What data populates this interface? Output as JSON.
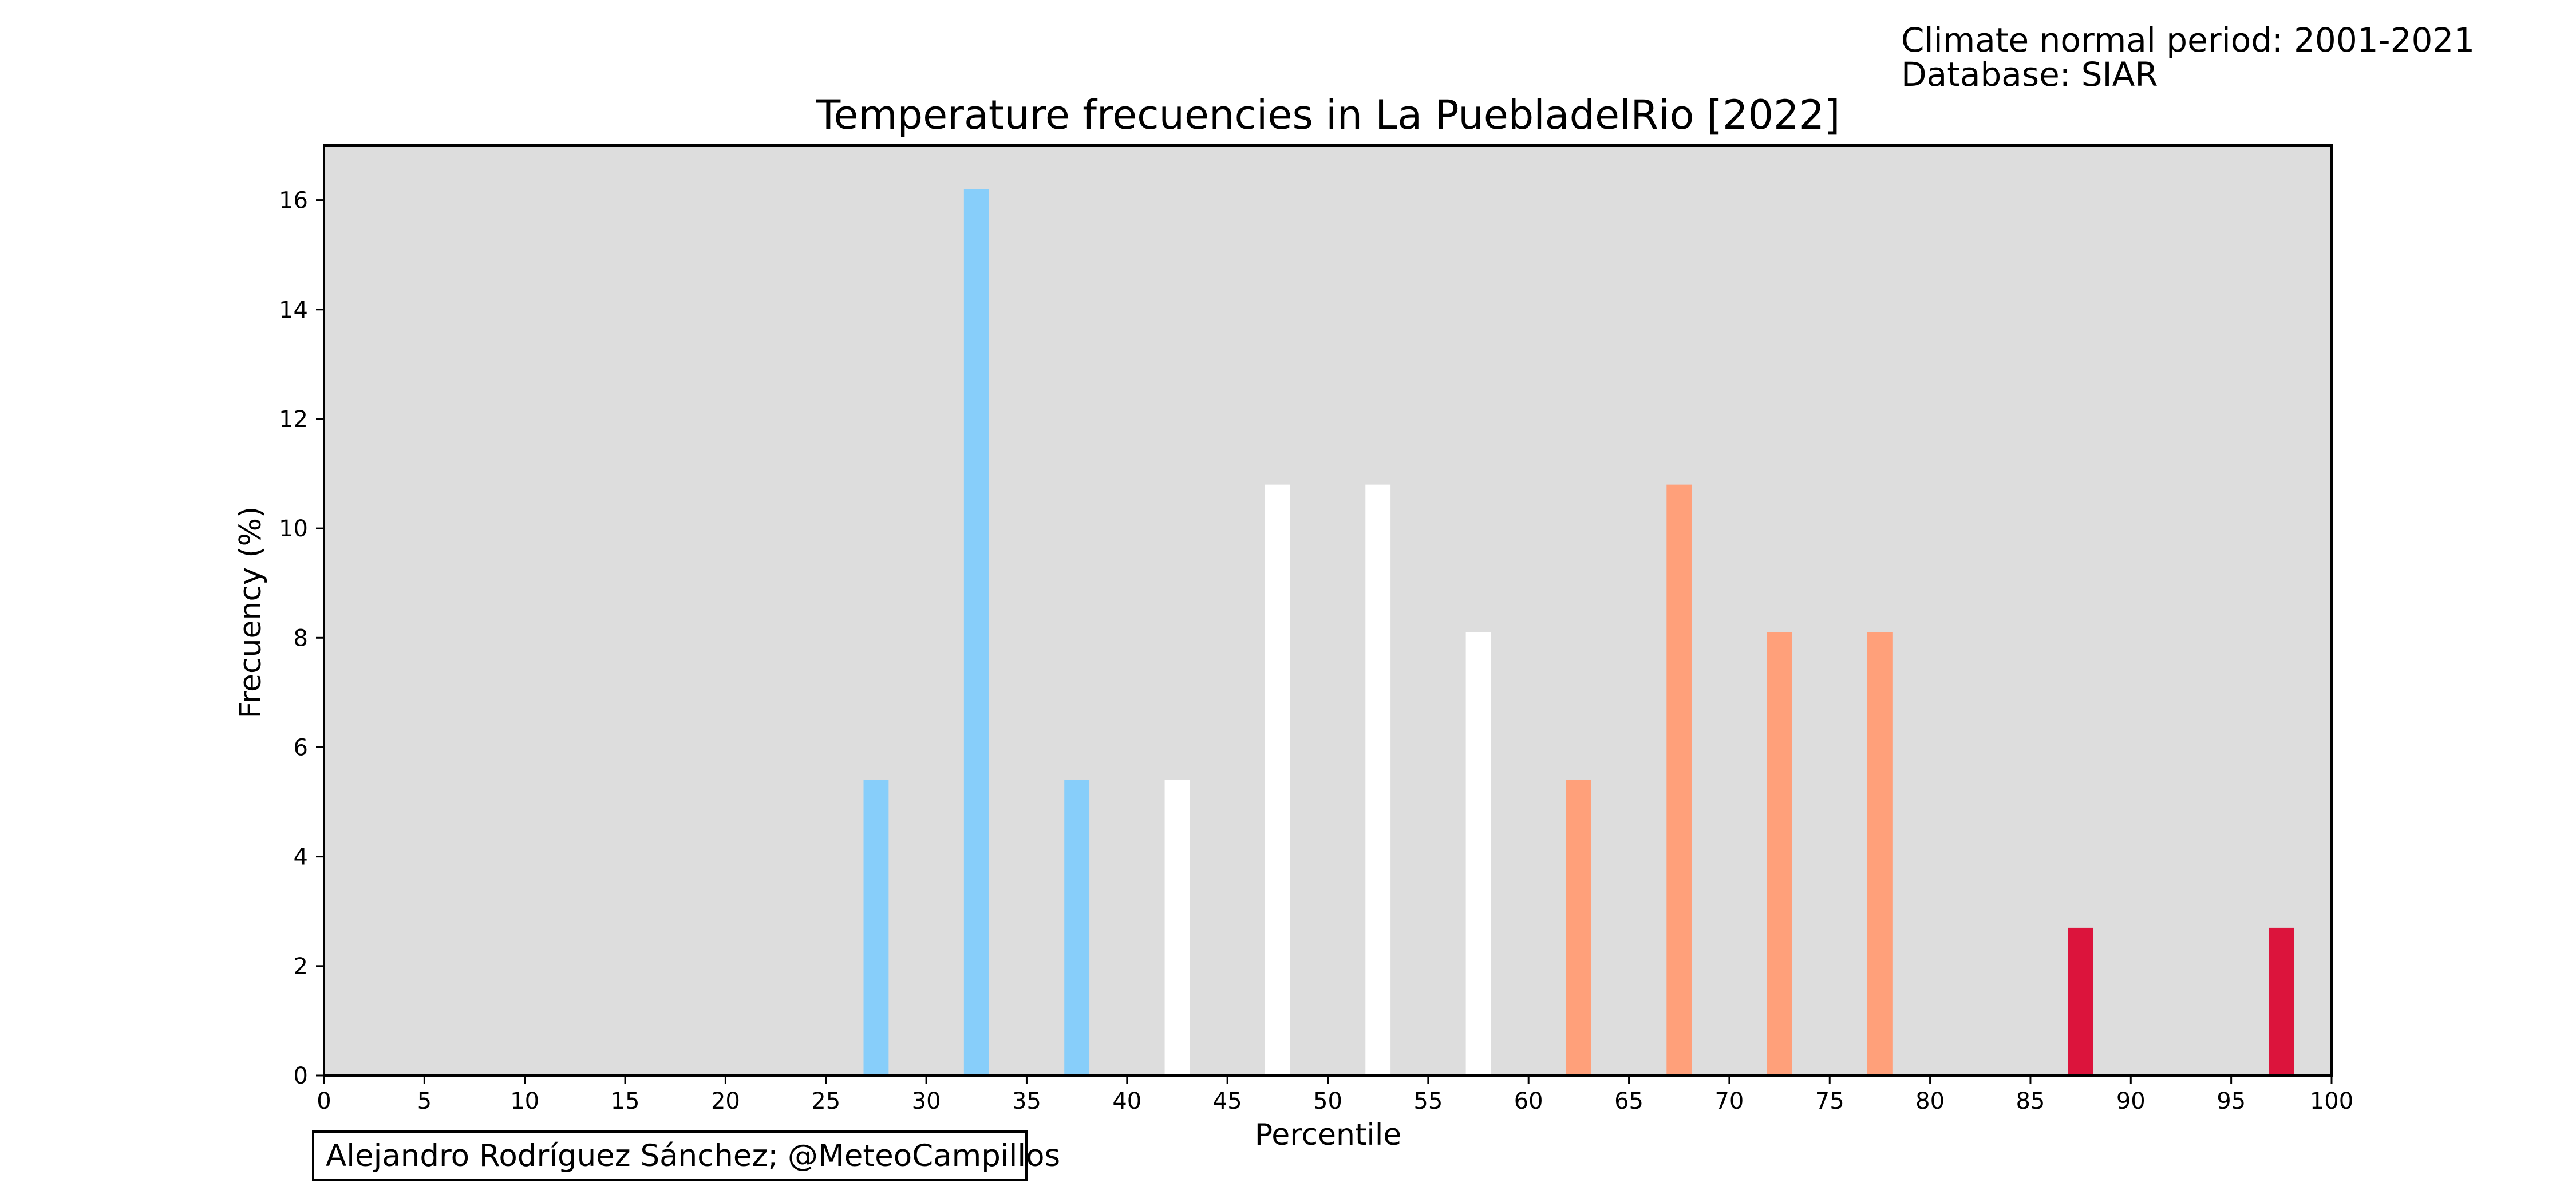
{
  "header": {
    "normal_period": "Climate normal period: 2001-2021",
    "database": "Database: SIAR"
  },
  "credit": "Alejandro Rodríguez Sánchez; @MeteoCampillos",
  "chart_data": {
    "type": "bar",
    "title": "Temperature frecuencies in La PuebladelRio [2022]",
    "xlabel": "Percentile",
    "ylabel": "Frecuency (%)",
    "xlim": [
      0,
      100
    ],
    "ylim": [
      0,
      17
    ],
    "xticks": [
      "0",
      "5",
      "10",
      "15",
      "20",
      "25",
      "30",
      "35",
      "40",
      "45",
      "50",
      "55",
      "60",
      "65",
      "70",
      "75",
      "80",
      "85",
      "90",
      "95",
      "100"
    ],
    "yticks": [
      "0",
      "2",
      "4",
      "6",
      "8",
      "10",
      "12",
      "14",
      "16"
    ],
    "plot_background": "#dddddd",
    "grid": false,
    "bar_width": 1.25,
    "bars": [
      {
        "x": 27.5,
        "value": 5.4,
        "color": "#87cefa"
      },
      {
        "x": 32.5,
        "value": 16.2,
        "color": "#87cefa"
      },
      {
        "x": 37.5,
        "value": 5.4,
        "color": "#87cefa"
      },
      {
        "x": 42.5,
        "value": 5.4,
        "color": "#ffffff"
      },
      {
        "x": 47.5,
        "value": 10.8,
        "color": "#ffffff"
      },
      {
        "x": 52.5,
        "value": 10.8,
        "color": "#ffffff"
      },
      {
        "x": 57.5,
        "value": 8.1,
        "color": "#ffffff"
      },
      {
        "x": 62.5,
        "value": 5.4,
        "color": "#ffa07a"
      },
      {
        "x": 67.5,
        "value": 10.8,
        "color": "#ffa07a"
      },
      {
        "x": 72.5,
        "value": 8.1,
        "color": "#ffa07a"
      },
      {
        "x": 77.5,
        "value": 8.1,
        "color": "#ffa07a"
      },
      {
        "x": 87.5,
        "value": 2.7,
        "color": "#dc143c"
      },
      {
        "x": 97.5,
        "value": 2.7,
        "color": "#dc143c"
      }
    ]
  }
}
